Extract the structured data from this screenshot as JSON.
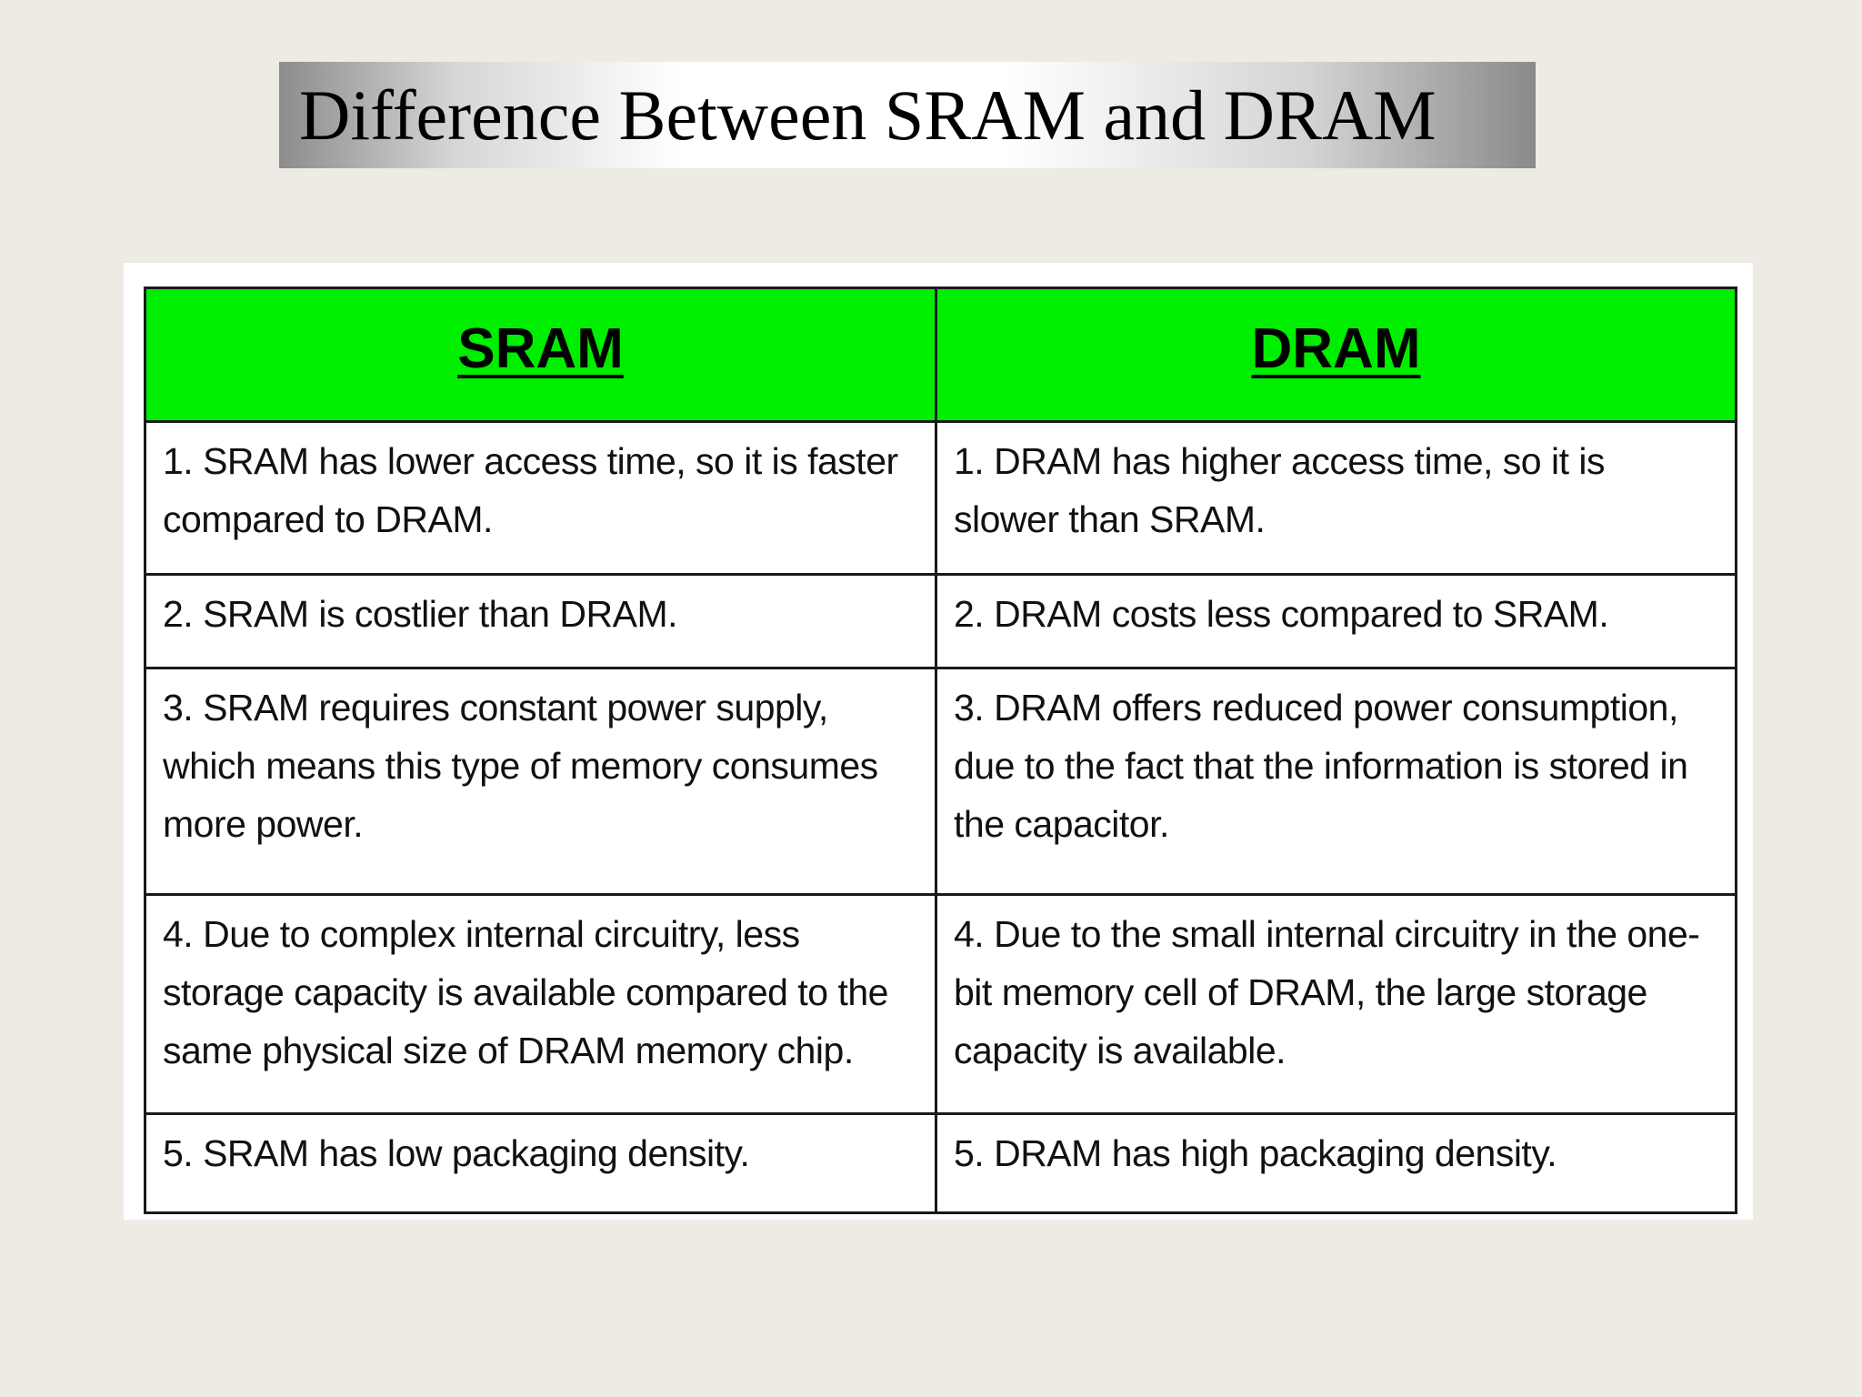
{
  "slide": {
    "title": "Difference Between SRAM and DRAM"
  },
  "table": {
    "headers": [
      "SRAM",
      "DRAM"
    ],
    "rows": [
      [
        "1.  SRAM has lower access time, so it is faster compared to DRAM.",
        "1.  DRAM has higher access time, so it is slower than SRAM."
      ],
      [
        "2.  SRAM is costlier than DRAM.",
        "2. DRAM costs less compared to SRAM."
      ],
      [
        "3.  SRAM requires constant power supply, which means this type of memory consumes more power.",
        "3.  DRAM offers reduced power consumption, due to the fact that the information is stored in the capacitor."
      ],
      [
        "4.  Due to complex internal circuitry, less storage capacity is available compared to the same physical size of DRAM memory chip.",
        "4.  Due to the small internal circuitry in the one-bit memory cell of DRAM, the large storage capacity is available."
      ],
      [
        "5.  SRAM has low packaging density.",
        "5.  DRAM has high packaging density."
      ]
    ]
  },
  "colors": {
    "background": "#edebe3",
    "header_fill": "#00ee00",
    "table_panel": "#ffffff"
  }
}
